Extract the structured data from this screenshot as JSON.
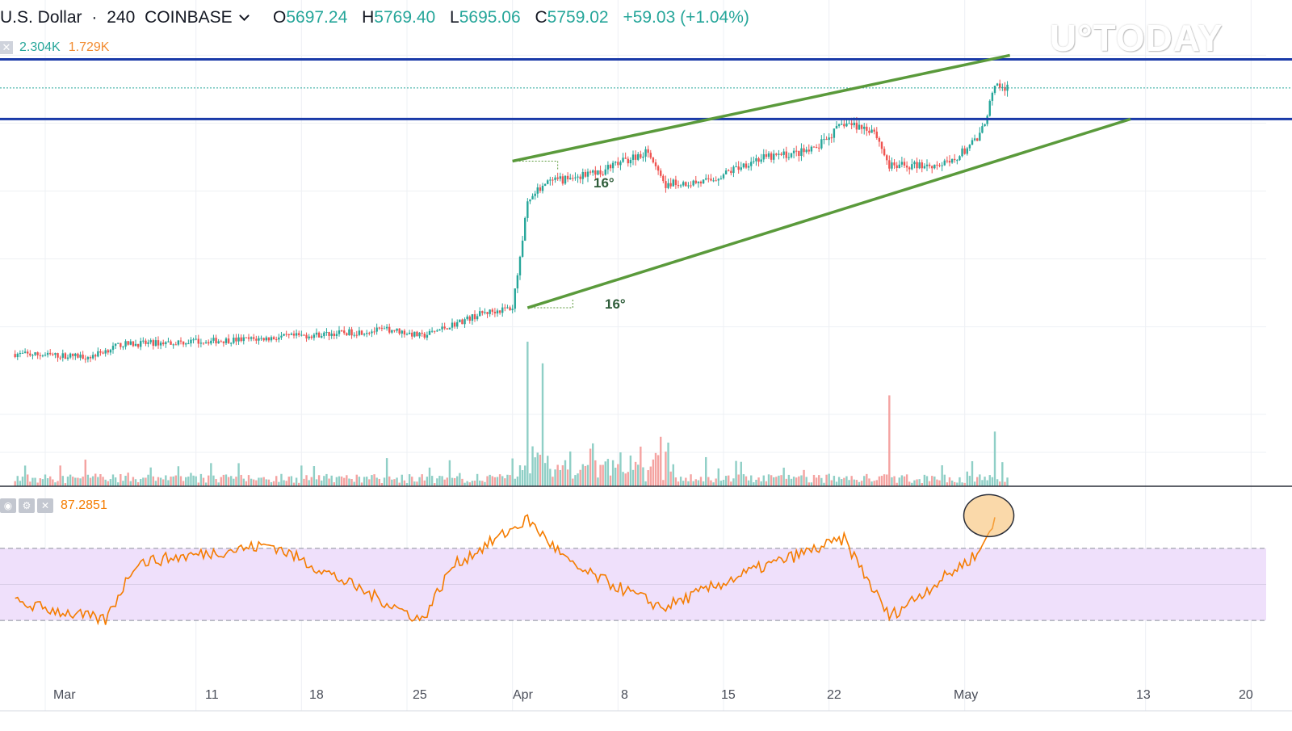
{
  "header": {
    "symbol": "U.S. Dollar",
    "interval": "240",
    "exchange": "COINBASE",
    "open_key": "O",
    "open": "5697.24",
    "high_key": "H",
    "high": "5769.40",
    "low_key": "L",
    "low": "5695.06",
    "close_key": "C",
    "close": "5759.02",
    "change": "+59.03 (+1.04%)"
  },
  "volume_legend": {
    "value1": "2.304K",
    "value2": "1.729K"
  },
  "rsi_legend": {
    "value": "87.2851"
  },
  "watermark": "U°TODAY",
  "annotations": {
    "angle_top": "16°",
    "angle_bottom": "16°"
  },
  "colors": {
    "up": "#26a69a",
    "down": "#ef5350",
    "channel": "#5a9a3b",
    "level": "#1a3aa8",
    "rsi": "#f57c00",
    "rsi_band": "#efe0fb"
  },
  "chart_data": {
    "type": "candlestick",
    "x_ticks": [
      "Mar",
      "11",
      "18",
      "25",
      "Apr",
      "8",
      "15",
      "22",
      "May",
      "13",
      "20"
    ],
    "price": {
      "waypoints": [
        {
          "date": "2019-02-27",
          "close": 3800
        },
        {
          "date": "2019-03-04",
          "close": 3780
        },
        {
          "date": "2019-03-06",
          "close": 3870
        },
        {
          "date": "2019-03-15",
          "close": 3910
        },
        {
          "date": "2019-03-24",
          "close": 3980
        },
        {
          "date": "2019-03-26",
          "close": 3930
        },
        {
          "date": "2019-03-30",
          "close": 4100
        },
        {
          "date": "2019-04-01",
          "close": 4140
        },
        {
          "date": "2019-04-02",
          "close": 4900
        },
        {
          "date": "2019-04-03",
          "close": 5050
        },
        {
          "date": "2019-04-07",
          "close": 5150
        },
        {
          "date": "2019-04-10",
          "close": 5300
        },
        {
          "date": "2019-04-11",
          "close": 5050
        },
        {
          "date": "2019-04-14",
          "close": 5070
        },
        {
          "date": "2019-04-17",
          "close": 5230
        },
        {
          "date": "2019-04-21",
          "close": 5300
        },
        {
          "date": "2019-04-23",
          "close": 5500
        },
        {
          "date": "2019-04-25",
          "close": 5450
        },
        {
          "date": "2019-04-26",
          "close": 5180
        },
        {
          "date": "2019-04-30",
          "close": 5200
        },
        {
          "date": "2019-05-02",
          "close": 5400
        },
        {
          "date": "2019-05-03",
          "close": 5759
        }
      ],
      "horizontal_levels": [
        5970,
        5530
      ],
      "channel_upper": [
        {
          "date": "2019-04-01",
          "price": 5220
        },
        {
          "date": "2019-05-04",
          "price": 6000
        }
      ],
      "channel_lower": [
        {
          "date": "2019-04-02",
          "price": 4140
        },
        {
          "date": "2019-05-12",
          "price": 5530
        }
      ]
    },
    "volume": {
      "spikes": [
        {
          "date": "2019-04-02",
          "value": 2304
        },
        {
          "date": "2019-04-03",
          "value": 2304
        },
        {
          "date": "2019-04-26",
          "value": 1729
        },
        {
          "date": "2019-05-03",
          "value": 1040
        }
      ]
    },
    "rsi": {
      "last_value": 87.2851,
      "overbought": 70,
      "oversold": 30,
      "waypoints": [
        {
          "date": "2019-02-27",
          "value": 40
        },
        {
          "date": "2019-03-05",
          "value": 30
        },
        {
          "date": "2019-03-07",
          "value": 62
        },
        {
          "date": "2019-03-16",
          "value": 72
        },
        {
          "date": "2019-03-26",
          "value": 30
        },
        {
          "date": "2019-03-28",
          "value": 60
        },
        {
          "date": "2019-04-02",
          "value": 86
        },
        {
          "date": "2019-04-05",
          "value": 60
        },
        {
          "date": "2019-04-11",
          "value": 37
        },
        {
          "date": "2019-04-17",
          "value": 58
        },
        {
          "date": "2019-04-23",
          "value": 75
        },
        {
          "date": "2019-04-26",
          "value": 32
        },
        {
          "date": "2019-05-02",
          "value": 68
        },
        {
          "date": "2019-05-03",
          "value": 87
        }
      ]
    }
  }
}
